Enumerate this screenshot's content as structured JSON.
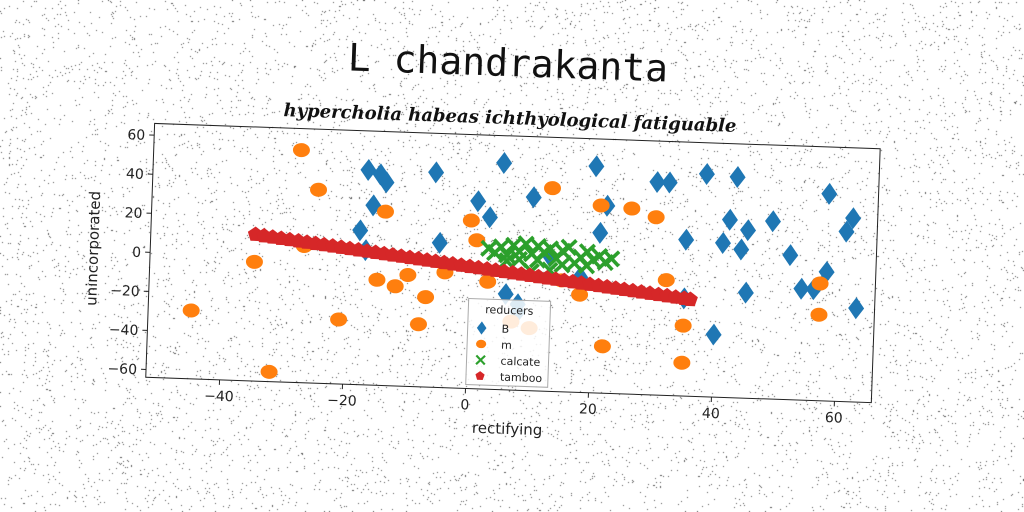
{
  "chart_data": {
    "type": "scatter",
    "title": "L chandrakanta",
    "subtitle": "hypercholia habeas ichthyological fatiguable",
    "xlabel": "rectifying",
    "ylabel": "unincorporated",
    "xlim": [
      -52,
      66
    ],
    "ylim": [
      -64,
      66
    ],
    "xticks": [
      -40,
      -20,
      0,
      20,
      40,
      60
    ],
    "yticks": [
      -60,
      -40,
      -20,
      0,
      20,
      40,
      60
    ],
    "legend": {
      "title": "reducers",
      "placement": "lower-center"
    },
    "series": [
      {
        "name": "B",
        "marker": "diamond",
        "color": "#1f77b4",
        "points": [
          [
            -17,
            46
          ],
          [
            -16,
            28
          ],
          [
            -15,
            44
          ],
          [
            -14,
            40
          ],
          [
            -18,
            15
          ],
          [
            -17,
            5
          ],
          [
            -6,
            46
          ],
          [
            -5,
            10
          ],
          [
            1,
            32
          ],
          [
            3,
            24
          ],
          [
            5,
            52
          ],
          [
            6,
            -15
          ],
          [
            8,
            -20
          ],
          [
            10,
            35
          ],
          [
            13,
            5
          ],
          [
            18,
            -5
          ],
          [
            20,
            52
          ],
          [
            21,
            18
          ],
          [
            22,
            32
          ],
          [
            30,
            45
          ],
          [
            32,
            45
          ],
          [
            35,
            16
          ],
          [
            35,
            -14
          ],
          [
            38,
            50
          ],
          [
            40,
            -32
          ],
          [
            41,
            15
          ],
          [
            42,
            27
          ],
          [
            43,
            49
          ],
          [
            44,
            12
          ],
          [
            45,
            22
          ],
          [
            45,
            -10
          ],
          [
            49,
            27
          ],
          [
            52,
            10
          ],
          [
            54,
            -7
          ],
          [
            58,
            42
          ],
          [
            58,
            2
          ],
          [
            61,
            23
          ],
          [
            62,
            30
          ],
          [
            63,
            -16
          ],
          [
            56,
            -7
          ],
          [
            8,
            -24
          ]
        ]
      },
      {
        "name": "m",
        "marker": "circle",
        "color": "#ff7f0e",
        "points": [
          [
            -45,
            -29
          ],
          [
            -35,
            -3
          ],
          [
            -32,
            -59
          ],
          [
            -28,
            55
          ],
          [
            -27,
            6
          ],
          [
            -25,
            35
          ],
          [
            -21,
            -31
          ],
          [
            -15,
            -10
          ],
          [
            -14,
            25
          ],
          [
            -12,
            -13
          ],
          [
            -10,
            -7
          ],
          [
            -8,
            -32
          ],
          [
            -7,
            -18
          ],
          [
            -4,
            -5
          ],
          [
            0,
            22
          ],
          [
            1,
            12
          ],
          [
            3,
            -9
          ],
          [
            7,
            -29
          ],
          [
            10,
            -32
          ],
          [
            13,
            40
          ],
          [
            18,
            -14
          ],
          [
            21,
            32
          ],
          [
            22,
            -40
          ],
          [
            26,
            31
          ],
          [
            30,
            27
          ],
          [
            32,
            -5
          ],
          [
            35,
            -28
          ],
          [
            35,
            -47
          ],
          [
            57,
            -4
          ],
          [
            57,
            -20
          ],
          [
            15,
            -7
          ]
        ]
      },
      {
        "name": "calcate",
        "marker": "x",
        "color": "#2ca02c",
        "points": [
          [
            3,
            8
          ],
          [
            4,
            6
          ],
          [
            5,
            9
          ],
          [
            6,
            5
          ],
          [
            7,
            10
          ],
          [
            8,
            7
          ],
          [
            9,
            11
          ],
          [
            10,
            6
          ],
          [
            11,
            3
          ],
          [
            12,
            7
          ],
          [
            13,
            9
          ],
          [
            14,
            4
          ],
          [
            15,
            8
          ],
          [
            16,
            10
          ],
          [
            17,
            2
          ],
          [
            18,
            5
          ],
          [
            19,
            8
          ],
          [
            20,
            4
          ],
          [
            21,
            6
          ],
          [
            22,
            3
          ],
          [
            23,
            5
          ],
          [
            6,
            2
          ],
          [
            8,
            3
          ],
          [
            11,
            10
          ],
          [
            15,
            1
          ],
          [
            19,
            1
          ],
          [
            10,
            -3
          ],
          [
            13,
            -2
          ]
        ]
      },
      {
        "name": "tamboo",
        "marker": "pentagon",
        "color": "#d62728",
        "points": [
          [
            -35,
            11
          ],
          [
            -33.6,
            10.4
          ],
          [
            -32.2,
            9.9
          ],
          [
            -30.8,
            9.4
          ],
          [
            -29.4,
            8.9
          ],
          [
            -28,
            8.4
          ],
          [
            -26.6,
            7.9
          ],
          [
            -25.2,
            7.4
          ],
          [
            -23.8,
            6.9
          ],
          [
            -22.4,
            6.4
          ],
          [
            -21,
            5.9
          ],
          [
            -19.6,
            5.4
          ],
          [
            -18.2,
            4.9
          ],
          [
            -16.8,
            4.4
          ],
          [
            -15.4,
            3.9
          ],
          [
            -14,
            3.4
          ],
          [
            -12.6,
            2.9
          ],
          [
            -11.2,
            2.4
          ],
          [
            -9.8,
            1.9
          ],
          [
            -8.4,
            1.4
          ],
          [
            -7,
            0.9
          ],
          [
            -5.6,
            0.4
          ],
          [
            -4.2,
            -0.1
          ],
          [
            -2.8,
            -0.6
          ],
          [
            -1.4,
            -1.1
          ],
          [
            0,
            -1.6
          ],
          [
            1.4,
            -2.1
          ],
          [
            2.8,
            -2.6
          ],
          [
            4.2,
            -3.1
          ],
          [
            5.6,
            -3.6
          ],
          [
            7,
            -4.1
          ],
          [
            8.4,
            -4.6
          ],
          [
            9.8,
            -5.1
          ],
          [
            11.2,
            -5.6
          ],
          [
            12.6,
            -6.1
          ],
          [
            14,
            -6.6
          ],
          [
            15.4,
            -7.1
          ],
          [
            16.8,
            -7.6
          ],
          [
            18.2,
            -8.1
          ],
          [
            19.6,
            -8.6
          ],
          [
            21,
            -9.1
          ],
          [
            22.4,
            -9.6
          ],
          [
            23.8,
            -10.1
          ],
          [
            25.2,
            -10.6
          ],
          [
            26.6,
            -11.1
          ],
          [
            28,
            -11.6
          ],
          [
            29.4,
            -12.1
          ],
          [
            30.8,
            -12.6
          ],
          [
            32.2,
            -13.1
          ],
          [
            33.6,
            -13.6
          ],
          [
            35,
            -14.1
          ],
          [
            36,
            -14.5
          ]
        ]
      }
    ]
  }
}
